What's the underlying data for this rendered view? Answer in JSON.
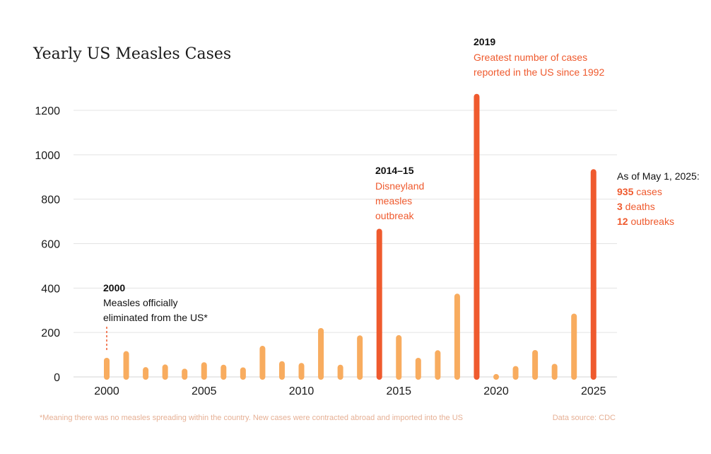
{
  "chart_data": {
    "type": "bar",
    "title": "Yearly US Measles Cases",
    "xlabel": "",
    "ylabel": "",
    "ylim": [
      0,
      1300
    ],
    "y_ticks": [
      0,
      200,
      400,
      600,
      800,
      1000,
      1200
    ],
    "x_ticks": [
      2000,
      2005,
      2010,
      2015,
      2020,
      2025
    ],
    "grid": "horizontal",
    "years": [
      2000,
      2001,
      2002,
      2003,
      2004,
      2005,
      2006,
      2007,
      2008,
      2009,
      2010,
      2011,
      2012,
      2013,
      2014,
      2015,
      2016,
      2017,
      2018,
      2019,
      2020,
      2021,
      2022,
      2023,
      2024,
      2025
    ],
    "values": [
      86,
      116,
      44,
      56,
      37,
      66,
      55,
      43,
      140,
      71,
      63,
      220,
      55,
      187,
      667,
      188,
      86,
      120,
      375,
      1274,
      13,
      49,
      121,
      59,
      285,
      935
    ],
    "highlight_years": [
      2014,
      2019,
      2025
    ],
    "colors": {
      "normal": "#f8ac5f",
      "highlight": "#ef5a2e",
      "grid": "#e3e3e3",
      "annotation_red": "#ef5a2e"
    },
    "annotations": {
      "y2000": {
        "heading": "2000",
        "lines": [
          "Measles officially",
          "eliminated from the US*"
        ]
      },
      "y2014": {
        "heading": "2014–15",
        "lines": [
          "Disneyland",
          "measles",
          "outbreak"
        ]
      },
      "y2019": {
        "heading": "2019",
        "lines": [
          "Greatest number of cases",
          "reported in the US since 1992"
        ]
      },
      "y2025": {
        "heading": "As of May 1, 2025:",
        "stats": [
          {
            "value": "935",
            "label": " cases"
          },
          {
            "value": "3",
            "label": " deaths"
          },
          {
            "value": "12",
            "label": " outbreaks"
          }
        ]
      }
    },
    "footnote": "*Meaning there was no measles spreading within the country. New cases were contracted abroad and imported into the US",
    "source": "Data source: CDC"
  }
}
